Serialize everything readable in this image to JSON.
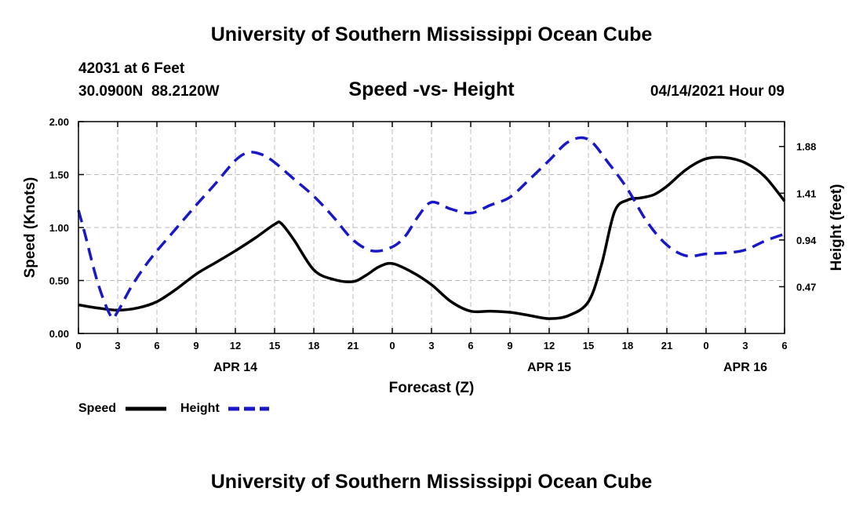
{
  "header": {
    "title_top": "University of Southern Mississippi Ocean Cube",
    "station": "42031 at 6 Feet",
    "coords": "30.0900N  88.2120W",
    "chart_title": "Speed -vs- Height",
    "datetime": "04/14/2021 Hour 09",
    "title_bottom": "University of Southern Mississippi Ocean Cube"
  },
  "colors": {
    "speed": "#000000",
    "height": "#1818c8",
    "grid": "#bbbbbb"
  },
  "chart_data": {
    "type": "line",
    "title": "Speed -vs- Height",
    "xlabel": "Forecast (Z)",
    "ylabel": "Speed (Knots)",
    "y2label": "Height (feet)",
    "xlim": [
      0,
      54
    ],
    "ylim": [
      0,
      2
    ],
    "y2lim": [
      0,
      2.13
    ],
    "x_ticks": [
      0,
      3,
      6,
      9,
      12,
      15,
      18,
      21,
      24,
      27,
      30,
      33,
      36,
      39,
      42,
      45,
      48,
      51,
      54
    ],
    "x_tick_labels": [
      "0",
      "3",
      "6",
      "9",
      "12",
      "15",
      "18",
      "21",
      "0",
      "3",
      "6",
      "9",
      "12",
      "15",
      "18",
      "21",
      "0",
      "3",
      "6"
    ],
    "date_labels": [
      {
        "x": 12,
        "label": "APR 14"
      },
      {
        "x": 36,
        "label": "APR 15"
      },
      {
        "x": 51,
        "label": "APR 16"
      }
    ],
    "y_ticks": [
      0,
      0.5,
      1.0,
      1.5,
      2.0
    ],
    "y_tick_labels": [
      "0.00",
      "0.50",
      "1.00",
      "1.50",
      "2.00"
    ],
    "y2_ticks": [
      0.47,
      0.94,
      1.41,
      1.88
    ],
    "y2_tick_labels": [
      "0.47",
      "0.94",
      "1.41",
      "1.88"
    ],
    "grid": true,
    "legend": {
      "position": "bottom-left",
      "speed_label": "Speed",
      "height_label": "Height"
    },
    "series": [
      {
        "name": "Speed",
        "axis": "left",
        "style": "solid",
        "x": [
          0,
          1.5,
          3,
          4.5,
          6,
          7.5,
          9,
          10.5,
          12,
          13.5,
          15,
          15.5,
          16.5,
          18,
          19.5,
          21,
          22,
          23,
          24,
          25.5,
          27,
          28.5,
          30,
          31.5,
          33,
          34.5,
          36,
          37.5,
          39,
          40,
          41,
          42,
          43,
          44,
          45,
          46.5,
          48,
          49.5,
          51,
          52.5,
          54
        ],
        "values": [
          0.27,
          0.24,
          0.22,
          0.24,
          0.3,
          0.42,
          0.56,
          0.67,
          0.78,
          0.9,
          1.03,
          1.04,
          0.88,
          0.6,
          0.51,
          0.49,
          0.55,
          0.63,
          0.66,
          0.58,
          0.46,
          0.3,
          0.21,
          0.21,
          0.2,
          0.17,
          0.14,
          0.17,
          0.3,
          0.65,
          1.15,
          1.26,
          1.28,
          1.31,
          1.39,
          1.55,
          1.65,
          1.66,
          1.61,
          1.48,
          1.25
        ]
      },
      {
        "name": "Height",
        "axis": "right",
        "style": "dashed",
        "x": [
          0,
          0.5,
          1.5,
          2.5,
          3,
          4,
          5,
          6,
          7.5,
          9,
          10.5,
          12,
          13,
          14,
          15,
          16.5,
          18,
          19.5,
          21,
          22.5,
          24,
          25,
          26,
          27,
          28.5,
          30,
          31.5,
          33,
          34.5,
          36,
          37.5,
          39,
          40.5,
          42,
          43.5,
          45,
          46.5,
          48,
          49.5,
          51,
          52.5,
          54
        ],
        "values": [
          1.24,
          1.0,
          0.5,
          0.17,
          0.22,
          0.46,
          0.66,
          0.83,
          1.06,
          1.29,
          1.51,
          1.74,
          1.82,
          1.8,
          1.72,
          1.55,
          1.38,
          1.17,
          0.94,
          0.83,
          0.87,
          0.98,
          1.18,
          1.32,
          1.25,
          1.21,
          1.29,
          1.37,
          1.55,
          1.74,
          1.93,
          1.95,
          1.72,
          1.45,
          1.12,
          0.89,
          0.78,
          0.8,
          0.81,
          0.84,
          0.93,
          1.0
        ]
      }
    ]
  }
}
